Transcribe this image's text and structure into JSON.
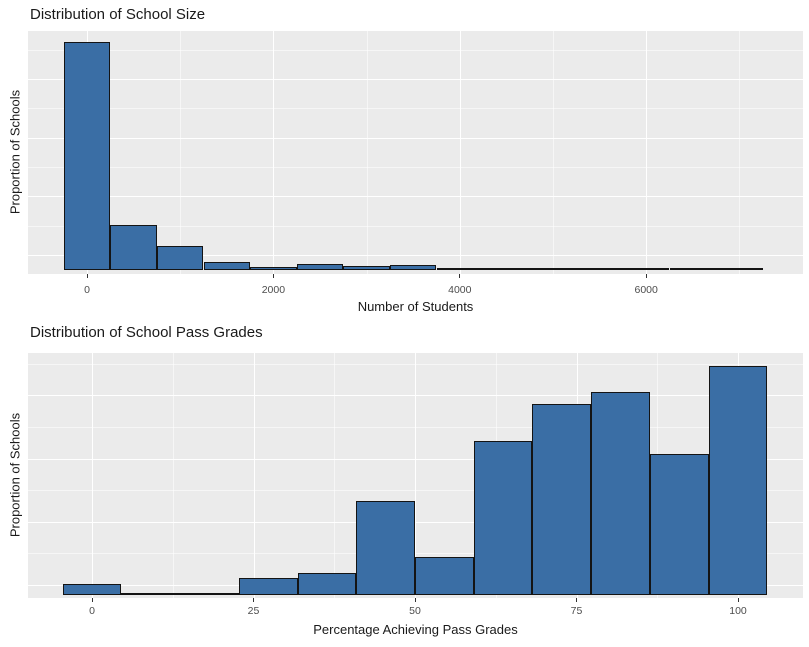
{
  "figure": {
    "background": "#FFFFFF",
    "panel_background": "#EBEBEB",
    "bar_fill": "#3A6EA5",
    "bar_stroke": "#141414",
    "gridline_color": "#FFFFFF",
    "tick_color": "#333333",
    "tick_label_color": "#4D4D4D",
    "text_color": "#1A1A1A"
  },
  "chart_data": [
    {
      "type": "bar",
      "subtype": "histogram",
      "title": "Distribution of School Size",
      "xlabel": "Number of Students",
      "ylabel": "Proportion of Schools",
      "legend": false,
      "grid": true,
      "x_tick_values": [
        0,
        2000,
        4000,
        6000
      ],
      "x_tick_labels": [
        "0",
        "2000",
        "4000",
        "6000"
      ],
      "x_minor_values": [
        1000,
        3000,
        5000,
        7000
      ],
      "xlim": [
        -633,
        7682
      ],
      "ylim": [
        0,
        0.69
      ],
      "y_tick_labels": [],
      "bin_width": 500,
      "bin_centers": [
        0,
        500,
        1000,
        1500,
        2000,
        2500,
        3000,
        3500,
        4000,
        4500,
        5000,
        5500,
        6000,
        6500,
        7000
      ],
      "proportions": [
        0.66,
        0.133,
        0.072,
        0.026,
        0.009,
        0.02,
        0.013,
        0.015,
        0.006,
        0.006,
        0.006,
        0.006,
        0.007,
        0.007,
        0.006
      ]
    },
    {
      "type": "bar",
      "subtype": "histogram",
      "title": "Distribution of School Pass Grades",
      "xlabel": "Percentage Achieving Pass Grades",
      "ylabel": "Proportion of Schools",
      "legend": false,
      "grid": true,
      "x_tick_values": [
        0,
        25,
        50,
        75,
        100
      ],
      "x_tick_labels": [
        "0",
        "25",
        "50",
        "75",
        "100"
      ],
      "x_minor_values": [
        12.5,
        37.5,
        62.5,
        87.5
      ],
      "xlim": [
        -9.9,
        110.1
      ],
      "ylim": [
        0,
        0.22
      ],
      "y_tick_labels": [],
      "bin_width": 9.09,
      "bin_centers": [
        0,
        9.09,
        18.18,
        27.27,
        36.36,
        45.45,
        54.55,
        63.64,
        72.73,
        81.82,
        90.91,
        100
      ],
      "proportions": [
        0.01,
        0.002,
        0.002,
        0.015,
        0.02,
        0.085,
        0.034,
        0.14,
        0.173,
        0.184,
        0.128,
        0.208
      ]
    }
  ]
}
